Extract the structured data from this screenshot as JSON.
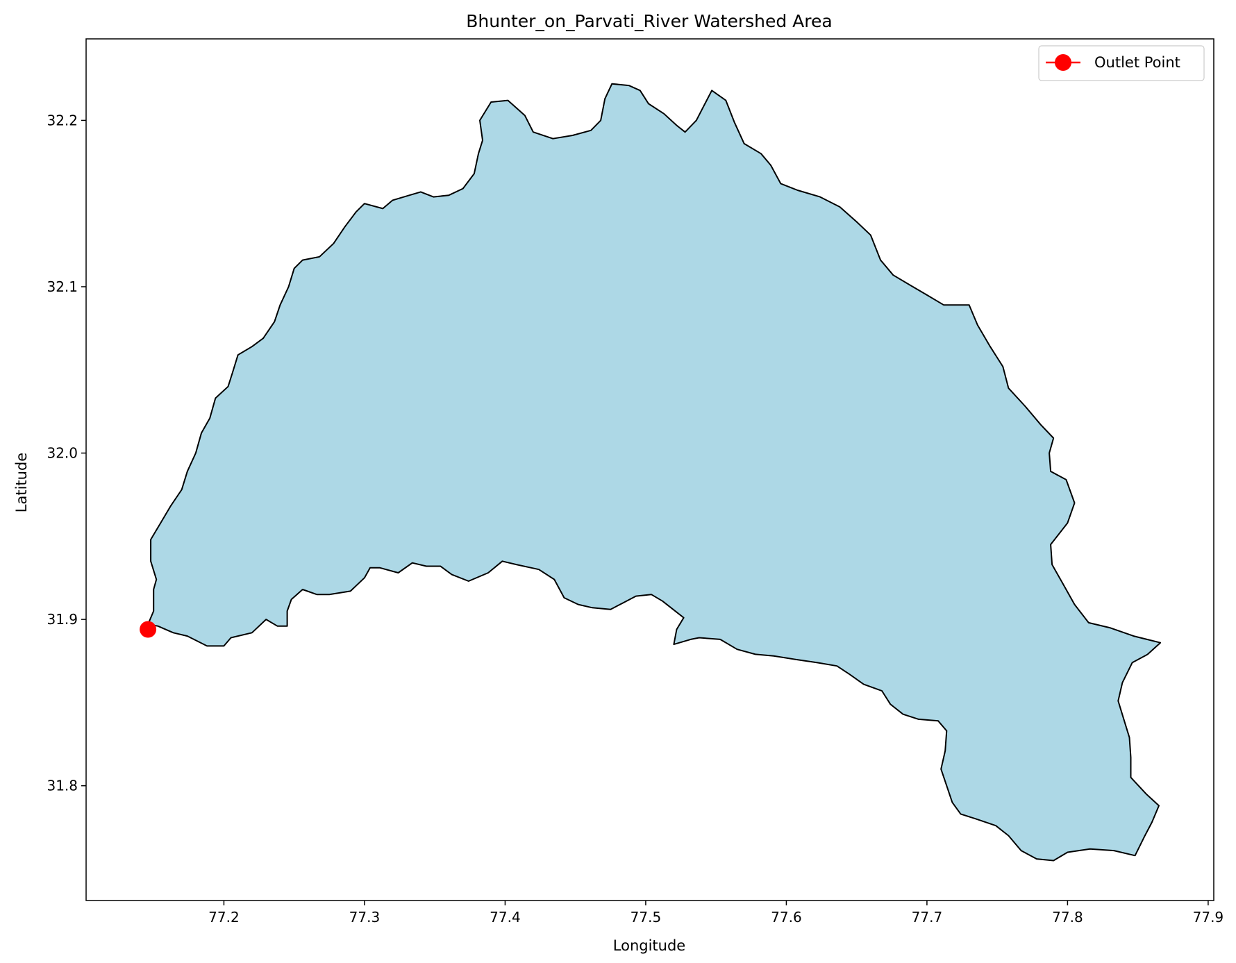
{
  "chart_data": {
    "type": "map",
    "title": "Bhunter_on_Parvati_River Watershed Area",
    "xlabel": "Longitude",
    "ylabel": "Latitude",
    "xlim": [
      77.102,
      77.904
    ],
    "ylim": [
      31.731,
      32.249
    ],
    "xticks": [
      77.2,
      77.3,
      77.4,
      77.5,
      77.6,
      77.7,
      77.8,
      77.9
    ],
    "xtick_labels": [
      "77.2",
      "77.3",
      "77.4",
      "77.5",
      "77.6",
      "77.7",
      "77.8",
      "77.9"
    ],
    "yticks": [
      31.8,
      31.9,
      32.0,
      32.1,
      32.2
    ],
    "ytick_labels": [
      "31.8",
      "31.9",
      "32.0",
      "32.1",
      "32.2"
    ],
    "legend": {
      "placement": "upper-right",
      "entries": [
        {
          "label": "Outlet Point",
          "color": "#ff0000",
          "marker": "circle"
        }
      ]
    },
    "colors": {
      "watershed_fill": "#add8e6",
      "boundary": "#000000",
      "outlet": "#ff0000"
    },
    "outlet_point": {
      "lon": 77.146,
      "lat": 31.894
    },
    "watershed_boundary": [
      [
        77.146,
        31.897
      ],
      [
        77.15,
        31.905
      ],
      [
        77.15,
        31.918
      ],
      [
        77.152,
        31.924
      ],
      [
        77.148,
        31.935
      ],
      [
        77.148,
        31.948
      ],
      [
        77.155,
        31.958
      ],
      [
        77.162,
        31.968
      ],
      [
        77.17,
        31.978
      ],
      [
        77.174,
        31.989
      ],
      [
        77.18,
        32.0
      ],
      [
        77.184,
        32.012
      ],
      [
        77.19,
        32.021
      ],
      [
        77.194,
        32.033
      ],
      [
        77.203,
        32.04
      ],
      [
        77.206,
        32.048
      ],
      [
        77.21,
        32.059
      ],
      [
        77.22,
        32.064
      ],
      [
        77.228,
        32.069
      ],
      [
        77.236,
        32.079
      ],
      [
        77.24,
        32.089
      ],
      [
        77.246,
        32.1
      ],
      [
        77.25,
        32.111
      ],
      [
        77.256,
        32.116
      ],
      [
        77.268,
        32.118
      ],
      [
        77.278,
        32.126
      ],
      [
        77.286,
        32.136
      ],
      [
        77.294,
        32.145
      ],
      [
        77.3,
        32.15
      ],
      [
        77.313,
        32.147
      ],
      [
        77.32,
        32.152
      ],
      [
        77.332,
        32.155
      ],
      [
        77.34,
        32.157
      ],
      [
        77.349,
        32.154
      ],
      [
        77.36,
        32.155
      ],
      [
        77.37,
        32.159
      ],
      [
        77.378,
        32.168
      ],
      [
        77.381,
        32.18
      ],
      [
        77.384,
        32.188
      ],
      [
        77.382,
        32.2
      ],
      [
        77.39,
        32.211
      ],
      [
        77.402,
        32.212
      ],
      [
        77.414,
        32.203
      ],
      [
        77.42,
        32.193
      ],
      [
        77.434,
        32.189
      ],
      [
        77.448,
        32.191
      ],
      [
        77.461,
        32.194
      ],
      [
        77.468,
        32.2
      ],
      [
        77.471,
        32.213
      ],
      [
        77.476,
        32.222
      ],
      [
        77.488,
        32.221
      ],
      [
        77.496,
        32.218
      ],
      [
        77.502,
        32.21
      ],
      [
        77.513,
        32.204
      ],
      [
        77.522,
        32.197
      ],
      [
        77.528,
        32.193
      ],
      [
        77.536,
        32.2
      ],
      [
        77.547,
        32.218
      ],
      [
        77.557,
        32.212
      ],
      [
        77.563,
        32.199
      ],
      [
        77.57,
        32.186
      ],
      [
        77.582,
        32.18
      ],
      [
        77.589,
        32.173
      ],
      [
        77.596,
        32.162
      ],
      [
        77.608,
        32.158
      ],
      [
        77.624,
        32.154
      ],
      [
        77.638,
        32.148
      ],
      [
        77.65,
        32.139
      ],
      [
        77.66,
        32.131
      ],
      [
        77.667,
        32.116
      ],
      [
        77.676,
        32.107
      ],
      [
        77.688,
        32.101
      ],
      [
        77.7,
        32.095
      ],
      [
        77.712,
        32.089
      ],
      [
        77.73,
        32.089
      ],
      [
        77.736,
        32.077
      ],
      [
        77.745,
        32.064
      ],
      [
        77.754,
        32.052
      ],
      [
        77.758,
        32.039
      ],
      [
        77.77,
        32.028
      ],
      [
        77.781,
        32.017
      ],
      [
        77.79,
        32.009
      ],
      [
        77.787,
        32.0
      ],
      [
        77.788,
        31.989
      ],
      [
        77.799,
        31.984
      ],
      [
        77.805,
        31.97
      ],
      [
        77.8,
        31.958
      ],
      [
        77.788,
        31.945
      ],
      [
        77.789,
        31.933
      ],
      [
        77.797,
        31.921
      ],
      [
        77.805,
        31.909
      ],
      [
        77.815,
        31.898
      ],
      [
        77.83,
        31.895
      ],
      [
        77.847,
        31.89
      ],
      [
        77.866,
        31.886
      ],
      [
        77.857,
        31.879
      ],
      [
        77.846,
        31.874
      ],
      [
        77.839,
        31.862
      ],
      [
        77.836,
        31.851
      ],
      [
        77.84,
        31.84
      ],
      [
        77.844,
        31.829
      ],
      [
        77.845,
        31.817
      ],
      [
        77.845,
        31.805
      ],
      [
        77.856,
        31.795
      ],
      [
        77.865,
        31.788
      ],
      [
        77.86,
        31.778
      ],
      [
        77.855,
        31.77
      ],
      [
        77.848,
        31.758
      ],
      [
        77.833,
        31.761
      ],
      [
        77.816,
        31.762
      ],
      [
        77.8,
        31.76
      ],
      [
        77.79,
        31.755
      ],
      [
        77.778,
        31.756
      ],
      [
        77.767,
        31.761
      ],
      [
        77.758,
        31.77
      ],
      [
        77.749,
        31.776
      ],
      [
        77.735,
        31.78
      ],
      [
        77.724,
        31.783
      ],
      [
        77.718,
        31.79
      ],
      [
        77.714,
        31.8
      ],
      [
        77.71,
        31.81
      ],
      [
        77.713,
        31.821
      ],
      [
        77.714,
        31.833
      ],
      [
        77.708,
        31.839
      ],
      [
        77.694,
        31.84
      ],
      [
        77.683,
        31.843
      ],
      [
        77.674,
        31.849
      ],
      [
        77.668,
        31.857
      ],
      [
        77.655,
        31.861
      ],
      [
        77.645,
        31.867
      ],
      [
        77.636,
        31.872
      ],
      [
        77.622,
        31.874
      ],
      [
        77.606,
        31.876
      ],
      [
        77.591,
        31.878
      ],
      [
        77.578,
        31.879
      ],
      [
        77.565,
        31.882
      ],
      [
        77.553,
        31.888
      ],
      [
        77.538,
        31.889
      ],
      [
        77.532,
        31.888
      ],
      [
        77.52,
        31.885
      ],
      [
        77.522,
        31.894
      ],
      [
        77.527,
        31.901
      ],
      [
        77.512,
        31.911
      ],
      [
        77.504,
        31.915
      ],
      [
        77.493,
        31.914
      ],
      [
        77.484,
        31.91
      ],
      [
        77.475,
        31.906
      ],
      [
        77.462,
        31.907
      ],
      [
        77.452,
        31.909
      ],
      [
        77.442,
        31.913
      ],
      [
        77.435,
        31.924
      ],
      [
        77.424,
        31.93
      ],
      [
        77.408,
        31.933
      ],
      [
        77.398,
        31.935
      ],
      [
        77.388,
        31.928
      ],
      [
        77.374,
        31.923
      ],
      [
        77.362,
        31.927
      ],
      [
        77.354,
        31.932
      ],
      [
        77.344,
        31.932
      ],
      [
        77.334,
        31.934
      ],
      [
        77.324,
        31.928
      ],
      [
        77.311,
        31.931
      ],
      [
        77.304,
        31.931
      ],
      [
        77.3,
        31.925
      ],
      [
        77.29,
        31.917
      ],
      [
        77.275,
        31.915
      ],
      [
        77.266,
        31.915
      ],
      [
        77.256,
        31.918
      ],
      [
        77.248,
        31.912
      ],
      [
        77.245,
        31.905
      ],
      [
        77.245,
        31.896
      ],
      [
        77.238,
        31.896
      ],
      [
        77.23,
        31.9
      ],
      [
        77.22,
        31.892
      ],
      [
        77.205,
        31.889
      ],
      [
        77.2,
        31.884
      ],
      [
        77.188,
        31.884
      ],
      [
        77.174,
        31.89
      ],
      [
        77.164,
        31.892
      ],
      [
        77.153,
        31.896
      ],
      [
        77.146,
        31.897
      ]
    ]
  }
}
